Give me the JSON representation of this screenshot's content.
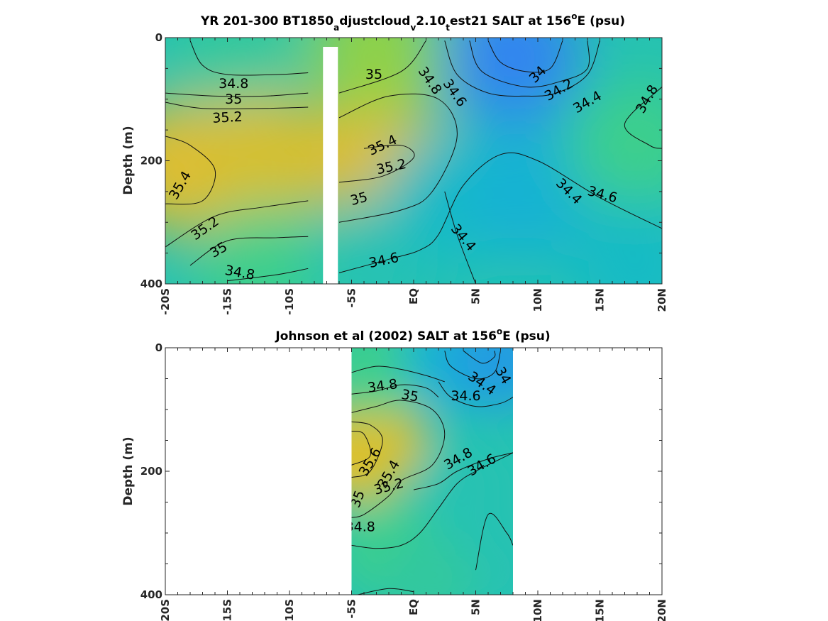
{
  "chart_data": [
    {
      "type": "heatmap",
      "title_main": "YR 201-300 BT1850",
      "title_sub1": "a",
      "title_mid1": "djustcloud",
      "title_sub2": "v",
      "title_mid2": "2.10",
      "title_sub3": "t",
      "title_mid3": "est21 SALT at 156",
      "title_sup": "o",
      "title_end": "E (psu)",
      "ylabel": "Depth (m)",
      "xlim": [
        -20,
        20
      ],
      "ylim": [
        0,
        400
      ],
      "x_ticks": [
        {
          "value": -20,
          "label": "-20S"
        },
        {
          "value": -15,
          "label": "-15S"
        },
        {
          "value": -10,
          "label": "-10S"
        },
        {
          "value": -5,
          "label": "-5S"
        },
        {
          "value": 0,
          "label": "EQ"
        },
        {
          "value": 5,
          "label": "5N"
        },
        {
          "value": 10,
          "label": "10N"
        },
        {
          "value": 15,
          "label": "15N"
        },
        {
          "value": 20,
          "label": "20N"
        }
      ],
      "y_ticks": [
        {
          "value": 0,
          "label": "0"
        },
        {
          "value": 200,
          "label": "200"
        },
        {
          "value": 400,
          "label": "400"
        }
      ],
      "data_gap": {
        "lon_min": -7.3,
        "lon_max": -6.1,
        "depth_min": 15,
        "depth_max": 400
      },
      "colors": {
        "low": "#3085f0",
        "mid": "#13b8cf",
        "high": "#f1b73c"
      },
      "color_samples": [
        {
          "lon": -19,
          "depth": 210,
          "salt": 35.4
        },
        {
          "lon": -14,
          "depth": 20,
          "salt": 34.7
        },
        {
          "lon": -12,
          "depth": 200,
          "salt": 35.3
        },
        {
          "lon": -12,
          "depth": 380,
          "salt": 34.8
        },
        {
          "lon": -3,
          "depth": 180,
          "salt": 35.4
        },
        {
          "lon": -3,
          "depth": 20,
          "salt": 35.0
        },
        {
          "lon": -3,
          "depth": 370,
          "salt": 34.6
        },
        {
          "lon": 3,
          "depth": 260,
          "salt": 34.5
        },
        {
          "lon": 8,
          "depth": 30,
          "salt": 34.0
        },
        {
          "lon": 9,
          "depth": 250,
          "salt": 34.4
        },
        {
          "lon": 18,
          "depth": 180,
          "salt": 34.8
        },
        {
          "lon": 18,
          "depth": 370,
          "salt": 34.5
        }
      ],
      "contour_labels": [
        {
          "text": "34.8",
          "lon": -14.5,
          "depth": 75,
          "rot": 0
        },
        {
          "text": "35",
          "lon": -14.5,
          "depth": 100,
          "rot": 0
        },
        {
          "text": "35.2",
          "lon": -15,
          "depth": 130,
          "rot": -3
        },
        {
          "text": "35.4",
          "lon": -18.8,
          "depth": 240,
          "rot": -60
        },
        {
          "text": "35.2",
          "lon": -16.8,
          "depth": 310,
          "rot": -35
        },
        {
          "text": "35",
          "lon": -15.7,
          "depth": 345,
          "rot": -30
        },
        {
          "text": "34.8",
          "lon": -14,
          "depth": 382,
          "rot": 10
        },
        {
          "text": "35",
          "lon": -3.2,
          "depth": 60,
          "rot": 0
        },
        {
          "text": "35.4",
          "lon": -2.5,
          "depth": 175,
          "rot": -25
        },
        {
          "text": "35.2",
          "lon": -1.8,
          "depth": 210,
          "rot": -12
        },
        {
          "text": "35",
          "lon": -4.4,
          "depth": 262,
          "rot": -15
        },
        {
          "text": "34.6",
          "lon": -2.4,
          "depth": 362,
          "rot": -12
        },
        {
          "text": "34.8",
          "lon": 1.3,
          "depth": 70,
          "rot": 55
        },
        {
          "text": "34.6",
          "lon": 3.3,
          "depth": 90,
          "rot": 55
        },
        {
          "text": "34",
          "lon": 10,
          "depth": 60,
          "rot": -45
        },
        {
          "text": "34.2",
          "lon": 11.7,
          "depth": 85,
          "rot": -30
        },
        {
          "text": "34.4",
          "lon": 14,
          "depth": 105,
          "rot": -30
        },
        {
          "text": "34.8",
          "lon": 18.8,
          "depth": 100,
          "rot": -60
        },
        {
          "text": "34.4",
          "lon": 12.5,
          "depth": 250,
          "rot": 45
        },
        {
          "text": "34.6",
          "lon": 15.2,
          "depth": 255,
          "rot": 15
        },
        {
          "text": "34.4",
          "lon": 4,
          "depth": 325,
          "rot": 50
        }
      ],
      "contour_lines": [
        [
          [
            -18,
            5
          ],
          [
            -17,
            45
          ],
          [
            -15,
            60
          ],
          [
            -11,
            60
          ],
          [
            -8.5,
            57
          ]
        ],
        [
          [
            -20,
            90
          ],
          [
            -16,
            95
          ],
          [
            -12,
            95
          ],
          [
            -8.5,
            90
          ]
        ],
        [
          [
            -20,
            105
          ],
          [
            -17,
            115
          ],
          [
            -12,
            115
          ],
          [
            -8.5,
            113
          ]
        ],
        [
          [
            -20,
            160
          ],
          [
            -18,
            175
          ],
          [
            -16,
            215
          ],
          [
            -17,
            265
          ],
          [
            -20,
            270
          ]
        ],
        [
          [
            -20,
            340
          ],
          [
            -16,
            290
          ],
          [
            -12,
            275
          ],
          [
            -8.5,
            265
          ]
        ],
        [
          [
            -18,
            370
          ],
          [
            -15,
            330
          ],
          [
            -11,
            325
          ],
          [
            -8.5,
            323
          ]
        ],
        [
          [
            -15,
            395
          ],
          [
            -11,
            385
          ],
          [
            -8.5,
            375
          ]
        ],
        [
          [
            -6,
            90
          ],
          [
            -1,
            55
          ],
          [
            1,
            5
          ]
        ],
        [
          [
            -6,
            130
          ],
          [
            -2,
            95
          ],
          [
            2,
            100
          ],
          [
            3.5,
            160
          ],
          [
            1.5,
            250
          ],
          [
            -1,
            280
          ],
          [
            -6,
            300
          ]
        ],
        [
          [
            -4,
            180
          ],
          [
            -1,
            175
          ],
          [
            0,
            195
          ],
          [
            -2.5,
            225
          ],
          [
            -6,
            235
          ]
        ],
        [
          [
            -6,
            382
          ],
          [
            -2,
            360
          ],
          [
            0.5,
            345
          ],
          [
            2,
            320
          ],
          [
            4,
            240
          ],
          [
            7,
            190
          ],
          [
            10,
            200
          ],
          [
            15,
            260
          ],
          [
            20,
            310
          ]
        ],
        [
          [
            2.5,
            5
          ],
          [
            3.5,
            60
          ],
          [
            6,
            90
          ],
          [
            9,
            95
          ],
          [
            11.5,
            90
          ],
          [
            14,
            60
          ],
          [
            15,
            5
          ]
        ],
        [
          [
            4.5,
            5
          ],
          [
            5.5,
            55
          ],
          [
            9,
            80
          ],
          [
            12,
            70
          ],
          [
            14,
            50
          ],
          [
            14,
            5
          ]
        ],
        [
          [
            6,
            5
          ],
          [
            7,
            40
          ],
          [
            9,
            55
          ],
          [
            11,
            50
          ],
          [
            12,
            5
          ]
        ],
        [
          [
            20,
            80
          ],
          [
            17,
            140
          ],
          [
            19,
            175
          ],
          [
            20,
            180
          ]
        ],
        [
          [
            2.5,
            250
          ],
          [
            3.5,
            320
          ],
          [
            5,
            400
          ]
        ]
      ]
    },
    {
      "type": "heatmap",
      "title_main": "Johnson et al (2002) SALT at 156",
      "title_sup": "o",
      "title_end": "E (psu)",
      "ylabel": "Depth (m)",
      "xlim": [
        -20,
        20
      ],
      "ylim": [
        0,
        400
      ],
      "x_ticks": [
        {
          "value": -20,
          "label": "-20S"
        },
        {
          "value": -15,
          "label": "-15S"
        },
        {
          "value": -10,
          "label": "-10S"
        },
        {
          "value": -5,
          "label": "-5S"
        },
        {
          "value": 0,
          "label": "EQ"
        },
        {
          "value": 5,
          "label": "5N"
        },
        {
          "value": 10,
          "label": "10N"
        },
        {
          "value": 15,
          "label": "15N"
        },
        {
          "value": 20,
          "label": "20N"
        }
      ],
      "y_ticks": [
        {
          "value": 0,
          "label": "0"
        },
        {
          "value": 200,
          "label": "200"
        },
        {
          "value": 400,
          "label": "400"
        }
      ],
      "data_extent": {
        "lon_min": -5,
        "lon_max": 8
      },
      "colors": {
        "low": "#3085f0",
        "mid": "#13b8cf",
        "high": "#fcc03a"
      },
      "color_samples": [
        {
          "lon": -4.5,
          "depth": 170,
          "salt": 35.6
        },
        {
          "lon": -3,
          "depth": 150,
          "salt": 35.3
        },
        {
          "lon": -3,
          "depth": 30,
          "salt": 34.8
        },
        {
          "lon": 3,
          "depth": 20,
          "salt": 34.4
        },
        {
          "lon": 7,
          "depth": 20,
          "salt": 34.2
        },
        {
          "lon": 4,
          "depth": 220,
          "salt": 34.6
        },
        {
          "lon": -2,
          "depth": 330,
          "salt": 34.8
        },
        {
          "lon": 6,
          "depth": 360,
          "salt": 34.6
        },
        {
          "lon": 1,
          "depth": 380,
          "salt": 34.7
        }
      ],
      "contour_labels": [
        {
          "text": "34.8",
          "lon": -2.5,
          "depth": 62,
          "rot": -8
        },
        {
          "text": "35",
          "lon": -0.3,
          "depth": 78,
          "rot": 10
        },
        {
          "text": "34.4",
          "lon": 5.5,
          "depth": 58,
          "rot": 35
        },
        {
          "text": "34.6",
          "lon": 4.2,
          "depth": 78,
          "rot": 0
        },
        {
          "text": "34",
          "lon": 7.2,
          "depth": 45,
          "rot": 60
        },
        {
          "text": "35.6",
          "lon": -3.5,
          "depth": 185,
          "rot": -60
        },
        {
          "text": "35.4",
          "lon": -2,
          "depth": 205,
          "rot": -60
        },
        {
          "text": "35.2",
          "lon": -2,
          "depth": 225,
          "rot": -15
        },
        {
          "text": "35",
          "lon": -4.5,
          "depth": 245,
          "rot": -70
        },
        {
          "text": "34.8",
          "lon": 3.6,
          "depth": 180,
          "rot": -30
        },
        {
          "text": "34.6",
          "lon": 5.5,
          "depth": 190,
          "rot": -30
        },
        {
          "text": "34.8",
          "lon": -4.3,
          "depth": 290,
          "rot": 0
        }
      ],
      "contour_lines": [
        [
          [
            -5,
            40
          ],
          [
            -3,
            30
          ],
          [
            -1,
            35
          ],
          [
            1,
            45
          ],
          [
            2.5,
            55
          ]
        ],
        [
          [
            -5,
            75
          ],
          [
            -3,
            70
          ],
          [
            -1,
            60
          ],
          [
            1,
            65
          ],
          [
            2,
            80
          ]
        ],
        [
          [
            -5,
            105
          ],
          [
            -3,
            95
          ],
          [
            -1,
            85
          ],
          [
            1.5,
            100
          ],
          [
            2.5,
            140
          ],
          [
            1.5,
            190
          ],
          [
            -1,
            215
          ],
          [
            -2,
            240
          ],
          [
            -4,
            270
          ],
          [
            -5,
            275
          ]
        ],
        [
          [
            -5,
            120
          ],
          [
            -3.5,
            125
          ],
          [
            -2.5,
            150
          ],
          [
            -3.5,
            200
          ],
          [
            -5,
            210
          ]
        ],
        [
          [
            -5,
            135
          ],
          [
            -4,
            140
          ],
          [
            -3.5,
            175
          ],
          [
            -5,
            190
          ]
        ],
        [
          [
            2.5,
            5
          ],
          [
            3,
            30
          ],
          [
            5,
            50
          ],
          [
            6.5,
            40
          ],
          [
            7,
            5
          ]
        ],
        [
          [
            4,
            5
          ],
          [
            5.5,
            25
          ],
          [
            6.5,
            15
          ],
          [
            6.5,
            5
          ]
        ],
        [
          [
            2,
            55
          ],
          [
            3,
            80
          ],
          [
            5,
            95
          ],
          [
            7,
            90
          ],
          [
            8,
            80
          ]
        ],
        [
          [
            -5,
            320
          ],
          [
            -3,
            325
          ],
          [
            -1,
            320
          ],
          [
            0.5,
            300
          ],
          [
            2,
            260
          ],
          [
            3.5,
            220
          ],
          [
            5,
            200
          ],
          [
            7,
            180
          ],
          [
            8,
            170
          ]
        ],
        [
          [
            0,
            230
          ],
          [
            2,
            220
          ],
          [
            3.5,
            200
          ],
          [
            6,
            180
          ],
          [
            8,
            170
          ]
        ],
        [
          [
            -4.5,
            400
          ],
          [
            -2,
            390
          ],
          [
            0,
            395
          ]
        ],
        [
          [
            5,
            360
          ],
          [
            6,
            270
          ],
          [
            7.5,
            300
          ],
          [
            8,
            320
          ]
        ]
      ]
    }
  ]
}
